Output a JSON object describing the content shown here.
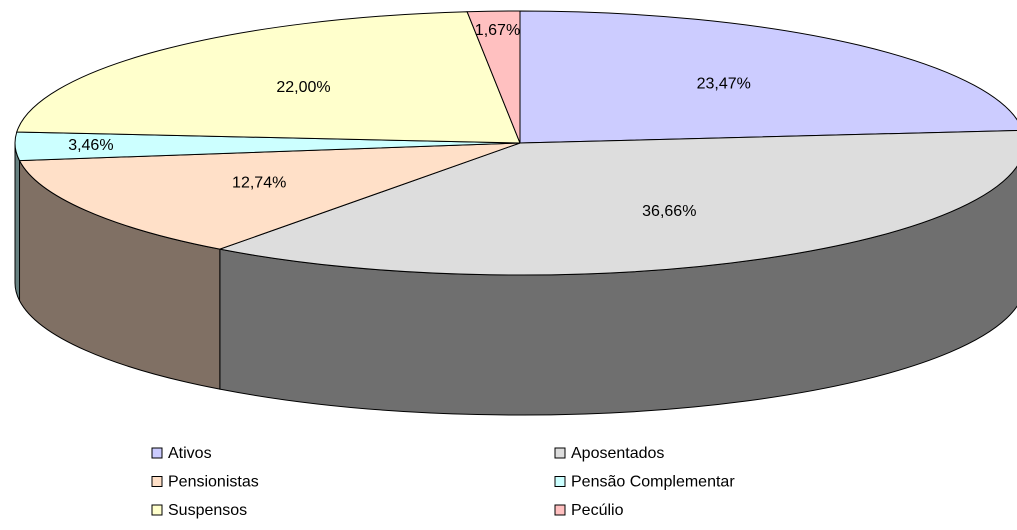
{
  "chart_data": {
    "type": "pie",
    "categories": [
      "Ativos",
      "Aposentados",
      "Pensionistas",
      "Pensão Complementar",
      "Suspensos",
      "Pecúlio"
    ],
    "values": [
      23.47,
      36.66,
      12.74,
      3.46,
      22.0,
      1.67
    ],
    "value_labels": [
      "23,47%",
      "36,66%",
      "12,74%",
      "3,46%",
      "22,00%",
      "1,67%"
    ],
    "colors": [
      "#ccccff",
      "#dddddd",
      "#ffe0c8",
      "#ccffff",
      "#ffffcc",
      "#ffc0c0"
    ],
    "legend": "bottom"
  }
}
